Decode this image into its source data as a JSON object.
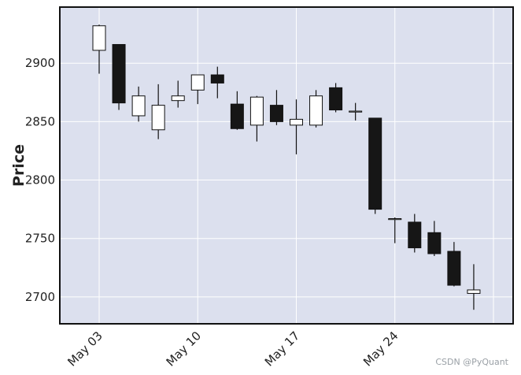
{
  "chart_data": {
    "type": "candlestick",
    "title": "",
    "xlabel": "",
    "ylabel": "Price",
    "ylim": [
      2677,
      2948
    ],
    "grid": true,
    "background_color": "#dce0ee",
    "grid_color": "#ffffff",
    "up_color": "#ffffff",
    "down_color": "#161616",
    "edge_color": "#111111",
    "yticks": [
      2700,
      2750,
      2800,
      2850,
      2900
    ],
    "xticks": [
      {
        "index": 0,
        "label": "May 03"
      },
      {
        "index": 5,
        "label": "May 10"
      },
      {
        "index": 10,
        "label": "May 17"
      },
      {
        "index": 15,
        "label": "May 24"
      }
    ],
    "candles": [
      {
        "open": 2911,
        "high": 2933,
        "low": 2891,
        "close": 2932
      },
      {
        "open": 2916,
        "high": 2916,
        "low": 2860,
        "close": 2866
      },
      {
        "open": 2855,
        "high": 2880,
        "low": 2850,
        "close": 2872
      },
      {
        "open": 2843,
        "high": 2882,
        "low": 2835,
        "close": 2864
      },
      {
        "open": 2868,
        "high": 2885,
        "low": 2862,
        "close": 2872
      },
      {
        "open": 2877,
        "high": 2890,
        "low": 2865,
        "close": 2890
      },
      {
        "open": 2890,
        "high": 2897,
        "low": 2870,
        "close": 2883
      },
      {
        "open": 2865,
        "high": 2876,
        "low": 2843,
        "close": 2844
      },
      {
        "open": 2847,
        "high": 2872,
        "low": 2833,
        "close": 2871
      },
      {
        "open": 2864,
        "high": 2877,
        "low": 2847,
        "close": 2850
      },
      {
        "open": 2847,
        "high": 2869,
        "low": 2822,
        "close": 2852
      },
      {
        "open": 2847,
        "high": 2877,
        "low": 2845,
        "close": 2872
      },
      {
        "open": 2879,
        "high": 2883,
        "low": 2858,
        "close": 2860
      },
      {
        "open": 2859,
        "high": 2866,
        "low": 2851,
        "close": 2859
      },
      {
        "open": 2853,
        "high": 2853,
        "low": 2771,
        "close": 2775
      },
      {
        "open": 2767,
        "high": 2768,
        "low": 2746,
        "close": 2767
      },
      {
        "open": 2764,
        "high": 2771,
        "low": 2738,
        "close": 2742
      },
      {
        "open": 2755,
        "high": 2765,
        "low": 2735,
        "close": 2737
      },
      {
        "open": 2739,
        "high": 2747,
        "low": 2709,
        "close": 2710
      },
      {
        "open": 2703,
        "high": 2728,
        "low": 2689,
        "close": 2706
      }
    ]
  },
  "watermark": "CSDN @PyQuant"
}
